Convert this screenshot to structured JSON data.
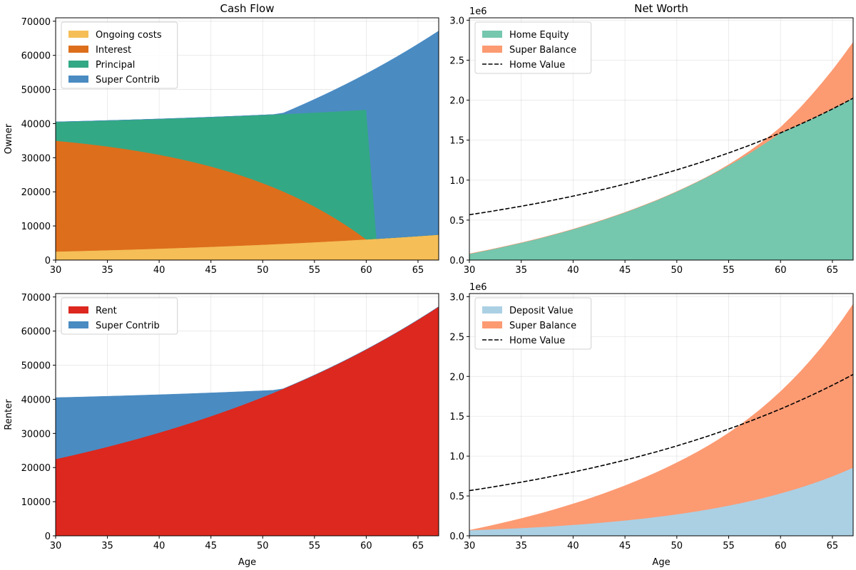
{
  "chart_data": [
    {
      "type": "area",
      "title": "Cash Flow",
      "xlabel": "",
      "ylabel": "Owner",
      "xlim": [
        30,
        67
      ],
      "ylim": [
        0,
        71000
      ],
      "xticks": [
        30,
        35,
        40,
        45,
        50,
        55,
        60,
        65
      ],
      "yticks": [
        0,
        10000,
        20000,
        30000,
        40000,
        50000,
        60000,
        70000
      ],
      "y_offset_label": "",
      "grid": true,
      "legend": "upper-left",
      "x": [
        30,
        31,
        32,
        33,
        34,
        35,
        36,
        37,
        38,
        39,
        40,
        41,
        42,
        43,
        44,
        45,
        46,
        47,
        48,
        49,
        50,
        51,
        52,
        53,
        54,
        55,
        56,
        57,
        58,
        59,
        60,
        61,
        62,
        63,
        64,
        65,
        66,
        67
      ],
      "series": [
        {
          "name": "Ongoing costs",
          "kind": "stack",
          "color": "#f5be57",
          "values": [
            2500,
            2575,
            2652,
            2732,
            2814,
            2898,
            2985,
            3075,
            3167,
            3262,
            3360,
            3461,
            3564,
            3671,
            3782,
            3895,
            4012,
            4132,
            4256,
            4384,
            4515,
            4651,
            4790,
            4934,
            5082,
            5235,
            5392,
            5553,
            5720,
            5892,
            6068,
            6250,
            6438,
            6631,
            6830,
            7035,
            7246,
            7463
          ]
        },
        {
          "name": "Interest",
          "kind": "stack",
          "color": "#dd6e1c",
          "values": [
            32490,
            32125,
            31737,
            31320,
            30875,
            30400,
            29895,
            29359,
            28781,
            28169,
            27516,
            26817,
            26076,
            25281,
            24434,
            23533,
            22568,
            21546,
            20452,
            19285,
            18039,
            16712,
            15295,
            13786,
            12175,
            10458,
            8626,
            6673,
            4590,
            2371,
            0,
            0,
            0,
            0,
            0,
            0,
            0,
            0
          ]
        },
        {
          "name": "Principal",
          "kind": "stack",
          "color": "#33a884",
          "values": [
            5510,
            5875,
            6263,
            6680,
            7125,
            7600,
            8105,
            8641,
            9219,
            9831,
            10484,
            11183,
            11924,
            12719,
            13566,
            14467,
            15432,
            16454,
            17548,
            18715,
            19961,
            21288,
            22705,
            24214,
            25825,
            27542,
            29374,
            31327,
            33410,
            35629,
            38000,
            0,
            0,
            0,
            0,
            0,
            0,
            0
          ]
        },
        {
          "name": "Super Contrib",
          "kind": "stack",
          "color": "#4a8bc2",
          "values": [
            0,
            0,
            0,
            0,
            0,
            0,
            0,
            0,
            0,
            0,
            0,
            0,
            0,
            0,
            0,
            0,
            0,
            0,
            0,
            0,
            0,
            0,
            322,
            1472,
            2656,
            3876,
            5132,
            6426,
            7758,
            9132,
            10546,
            50002,
            51502,
            53046,
            54638,
            56278,
            57966,
            59704
          ]
        }
      ]
    },
    {
      "type": "area",
      "title": "Net Worth",
      "xlabel": "",
      "ylabel": "",
      "xlim": [
        30,
        67
      ],
      "ylim": [
        0,
        3030000
      ],
      "xticks": [
        30,
        35,
        40,
        45,
        50,
        55,
        60,
        65
      ],
      "yticks": [
        0,
        500000,
        1000000,
        1500000,
        2000000,
        2500000,
        3000000
      ],
      "y_tick_labels": [
        "0.0",
        "0.5",
        "1.0",
        "1.5",
        "2.0",
        "2.5",
        "3.0"
      ],
      "y_offset_label": "1e6",
      "grid": true,
      "legend": "upper-left",
      "x": [
        30,
        31,
        32,
        33,
        34,
        35,
        36,
        37,
        38,
        39,
        40,
        41,
        42,
        43,
        44,
        45,
        46,
        47,
        48,
        49,
        50,
        51,
        52,
        53,
        54,
        55,
        56,
        57,
        58,
        59,
        60,
        61,
        62,
        63,
        64,
        65,
        66,
        67
      ],
      "series": [
        {
          "name": "Home Equity",
          "kind": "stack",
          "color": "#75c7ae",
          "values": [
            78000,
            104000,
            130000,
            158000,
            187000,
            216000,
            247000,
            279000,
            314000,
            349000,
            386000,
            425000,
            465000,
            507000,
            551000,
            596000,
            644000,
            694000,
            745000,
            800000,
            857000,
            917000,
            979000,
            1044000,
            1112000,
            1183000,
            1257000,
            1335000,
            1417000,
            1502000,
            1591000,
            1647000,
            1705000,
            1764000,
            1826000,
            1890000,
            1956000,
            2025000
          ]
        },
        {
          "name": "Super Balance",
          "kind": "stack",
          "color": "#fc9a72",
          "values": [
            0,
            0,
            0,
            0,
            0,
            0,
            0,
            0,
            0,
            0,
            0,
            0,
            0,
            0,
            0,
            0,
            0,
            0,
            0,
            0,
            0,
            0,
            400,
            2000,
            6000,
            11000,
            18000,
            27000,
            39000,
            53000,
            70000,
            140000,
            215000,
            300000,
            390000,
            485000,
            590000,
            700000
          ]
        },
        {
          "name": "Home Value",
          "kind": "line",
          "color": "#000000",
          "dash": true,
          "values": [
            567000,
            587000,
            607000,
            629000,
            651000,
            673000,
            697000,
            721000,
            747000,
            773000,
            800000,
            828000,
            857000,
            887000,
            918000,
            950000,
            983000,
            1018000,
            1053000,
            1090000,
            1128000,
            1168000,
            1209000,
            1251000,
            1295000,
            1340000,
            1387000,
            1435000,
            1486000,
            1538000,
            1591000,
            1647000,
            1705000,
            1764000,
            1826000,
            1890000,
            1956000,
            2025000
          ]
        }
      ]
    },
    {
      "type": "area",
      "title": "",
      "xlabel": "Age",
      "ylabel": "Renter",
      "xlim": [
        30,
        67
      ],
      "ylim": [
        0,
        71000
      ],
      "xticks": [
        30,
        35,
        40,
        45,
        50,
        55,
        60,
        65
      ],
      "yticks": [
        0,
        10000,
        20000,
        30000,
        40000,
        50000,
        60000,
        70000
      ],
      "y_offset_label": "",
      "grid": true,
      "legend": "upper-left",
      "x": [
        30,
        31,
        32,
        33,
        34,
        35,
        36,
        37,
        38,
        39,
        40,
        41,
        42,
        43,
        44,
        45,
        46,
        47,
        48,
        49,
        50,
        51,
        52,
        53,
        54,
        55,
        56,
        57,
        58,
        59,
        60,
        61,
        62,
        63,
        64,
        65,
        66,
        67
      ],
      "series": [
        {
          "name": "Rent",
          "kind": "stack",
          "color": "#dc281e",
          "values": [
            22500,
            23175,
            23870,
            24586,
            25324,
            26084,
            26867,
            27673,
            28503,
            29358,
            30238,
            31145,
            32081,
            33041,
            34034,
            35055,
            36106,
            37188,
            38304,
            39454,
            40637,
            41857,
            43112,
            44406,
            45738,
            47111,
            48524,
            49979,
            51478,
            53024,
            54614,
            56252,
            57940,
            59677,
            61468,
            63313,
            65212,
            67167
          ]
        },
        {
          "name": "Super Contrib",
          "kind": "stack",
          "color": "#4a8bc2",
          "values": [
            18000,
            17400,
            16782,
            16146,
            15490,
            14814,
            14118,
            13402,
            12664,
            11904,
            11122,
            10316,
            9483,
            8630,
            7748,
            6840,
            5906,
            4944,
            3952,
            2930,
            1878,
            794,
            0,
            0,
            0,
            0,
            0,
            0,
            0,
            0,
            0,
            0,
            0,
            0,
            0,
            0,
            0,
            0
          ]
        }
      ]
    },
    {
      "type": "area",
      "title": "",
      "xlabel": "Age",
      "ylabel": "",
      "xlim": [
        30,
        67
      ],
      "ylim": [
        0,
        3040000
      ],
      "xticks": [
        30,
        35,
        40,
        45,
        50,
        55,
        60,
        65
      ],
      "yticks": [
        0,
        500000,
        1000000,
        1500000,
        2000000,
        2500000,
        3000000
      ],
      "y_tick_labels": [
        "0.0",
        "0.5",
        "1.0",
        "1.5",
        "2.0",
        "2.5",
        "3.0"
      ],
      "y_offset_label": "1e6",
      "grid": true,
      "legend": "upper-left",
      "x": [
        30,
        31,
        32,
        33,
        34,
        35,
        36,
        37,
        38,
        39,
        40,
        41,
        42,
        43,
        44,
        45,
        46,
        47,
        48,
        49,
        50,
        51,
        52,
        53,
        54,
        55,
        56,
        57,
        58,
        59,
        60,
        61,
        62,
        63,
        64,
        65,
        66,
        67
      ],
      "series": [
        {
          "name": "Deposit Value",
          "kind": "stack",
          "color": "#abd0e4",
          "values": [
            70000,
            75000,
            80000,
            86000,
            92000,
            98000,
            105000,
            112000,
            120000,
            129000,
            138000,
            147000,
            158000,
            169000,
            181000,
            193000,
            207000,
            221000,
            237000,
            253000,
            271000,
            290000,
            310000,
            332000,
            355000,
            380000,
            406000,
            435000,
            465000,
            498000,
            533000,
            570000,
            610000,
            653000,
            698000,
            747000,
            800000,
            856000
          ]
        },
        {
          "name": "Super Balance",
          "kind": "stack",
          "color": "#fc9a72",
          "values": [
            0,
            22000,
            45000,
            69000,
            94000,
            119000,
            146000,
            173000,
            202000,
            232000,
            263000,
            295000,
            328000,
            363000,
            399000,
            436000,
            475000,
            515000,
            557000,
            601000,
            647000,
            694000,
            744000,
            796000,
            852000,
            911000,
            975000,
            1044000,
            1117000,
            1195000,
            1278000,
            1368000,
            1463000,
            1566000,
            1675000,
            1793000,
            1918000,
            2052000
          ]
        },
        {
          "name": "Home Value",
          "kind": "line",
          "color": "#000000",
          "dash": true,
          "values": [
            567000,
            587000,
            607000,
            629000,
            651000,
            673000,
            697000,
            721000,
            747000,
            773000,
            800000,
            828000,
            857000,
            887000,
            918000,
            950000,
            983000,
            1018000,
            1053000,
            1090000,
            1128000,
            1168000,
            1209000,
            1251000,
            1295000,
            1340000,
            1387000,
            1435000,
            1486000,
            1538000,
            1591000,
            1647000,
            1705000,
            1764000,
            1826000,
            1890000,
            1956000,
            2025000
          ]
        }
      ]
    }
  ]
}
